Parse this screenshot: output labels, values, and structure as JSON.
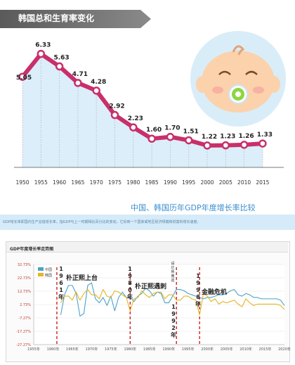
{
  "section1": {
    "title": "韩国总和生育率变化"
  },
  "section2": {
    "title": "中国、韩国历年GDP年度增长率比较",
    "description": "GDP增长率即国内生产总值增长率，指GDP与上一时期相比百分比的变动。它反映一个国家或地区经济规模和财富的增长速度。"
  },
  "chart_data": [
    {
      "type": "line",
      "title": "韩国总和生育率变化",
      "categories": [
        "1950",
        "1955",
        "1960",
        "1965",
        "1970",
        "1975",
        "1980",
        "1985",
        "1990",
        "1995",
        "2000",
        "2005",
        "2010",
        "2015"
      ],
      "values": [
        5.05,
        6.33,
        5.63,
        4.71,
        4.28,
        2.92,
        2.23,
        1.6,
        1.7,
        1.51,
        1.22,
        1.23,
        1.26,
        1.33
      ],
      "value_labels": [
        "5.05",
        "6.33",
        "5.63",
        "4.71",
        "4.28",
        "2.92",
        "2.23",
        "1.60",
        "1.70",
        "1.51",
        "1.22",
        "1.23",
        "1.26",
        "1.33"
      ],
      "ylim": [
        0,
        7
      ],
      "colors": {
        "line": "#c8306a",
        "area": "#dbeefa",
        "marker_fill": "#ffffff"
      }
    },
    {
      "type": "line",
      "title": "GDP年度增长率走势图",
      "y_ticks": [
        "32.73%",
        "22.73%",
        "12.73%",
        "2.73%",
        "-7.27%",
        "-17.27%",
        "-27.27%"
      ],
      "ylim": [
        -27.27,
        32.73
      ],
      "x_ticks": [
        "1955年",
        "1960年",
        "1965年",
        "1970年",
        "1975年",
        "1980年",
        "1985年",
        "1990年",
        "1995年",
        "2000年",
        "2005年",
        "2010年",
        "2015年",
        "2020年"
      ],
      "xlim": [
        1955,
        2020
      ],
      "legend": [
        "中国",
        "韩国"
      ],
      "legend_position": "top-left",
      "series": [
        {
          "name": "中国",
          "color": "#4aa3c9",
          "x": [
            1962,
            1963,
            1964,
            1965,
            1966,
            1967,
            1968,
            1969,
            1970,
            1971,
            1972,
            1973,
            1974,
            1975,
            1976,
            1977,
            1978,
            1979,
            1980,
            1981,
            1982,
            1983,
            1984,
            1985,
            1986,
            1987,
            1988,
            1989,
            1990,
            1991,
            1992,
            1993,
            1994,
            1995,
            1996,
            1997,
            1998,
            1999,
            2000,
            2001,
            2002,
            2003,
            2004,
            2005,
            2006,
            2007,
            2008,
            2009,
            2010,
            2011,
            2012,
            2013,
            2014,
            2015,
            2016,
            2017,
            2018,
            2019,
            2020
          ],
          "y": [
            -5,
            10,
            17,
            17,
            11,
            -6,
            -4,
            17,
            19,
            7,
            4,
            8,
            2,
            9,
            -2,
            8,
            12,
            8,
            8,
            5,
            9,
            11,
            15,
            13,
            9,
            12,
            11,
            4,
            4,
            9,
            14,
            14,
            13,
            11,
            10,
            9,
            8,
            7,
            8,
            8,
            9,
            10,
            10,
            11,
            13,
            14,
            10,
            9,
            11,
            10,
            8,
            8,
            7,
            7,
            7,
            7,
            7,
            6,
            2
          ]
        },
        {
          "name": "韩国",
          "color": "#e6b422",
          "x": [
            1962,
            1963,
            1964,
            1965,
            1966,
            1967,
            1968,
            1969,
            1970,
            1971,
            1972,
            1973,
            1974,
            1975,
            1976,
            1977,
            1978,
            1979,
            1980,
            1981,
            1982,
            1983,
            1984,
            1985,
            1986,
            1987,
            1988,
            1989,
            1990,
            1991,
            1992,
            1993,
            1994,
            1995,
            1996,
            1997,
            1998,
            1999,
            2000,
            2001,
            2002,
            2003,
            2004,
            2005,
            2006,
            2007,
            2008,
            2009,
            2010,
            2011,
            2012,
            2013,
            2014,
            2015,
            2016,
            2017,
            2018,
            2019,
            2020
          ],
          "y": [
            4,
            9,
            9,
            6,
            12,
            6,
            11,
            14,
            10,
            10,
            7,
            14,
            9,
            8,
            13,
            12,
            10,
            8,
            -2,
            7,
            8,
            13,
            10,
            8,
            11,
            12,
            12,
            7,
            10,
            10,
            6,
            6,
            9,
            9,
            7,
            6,
            -5,
            11,
            9,
            5,
            7,
            3,
            5,
            4,
            5,
            6,
            3,
            1,
            7,
            4,
            2,
            3,
            3,
            3,
            3,
            3,
            3,
            2,
            -1
          ]
        }
      ],
      "annotations": [
        "1961年朴正熙上台",
        "1980年朴正熙遇刺",
        "设计师南巡1992年",
        "1998年金融危机"
      ]
    }
  ],
  "annotation_labels": {
    "a1_year": "1961年",
    "a1_text": "朴正熙上台",
    "a2_year": "1980年",
    "a2_text": "朴正熙遇刺",
    "a3_text": "设计师南巡",
    "a3_year": "1992年",
    "a4_year": "1998年",
    "a4_text": "金融危机"
  }
}
